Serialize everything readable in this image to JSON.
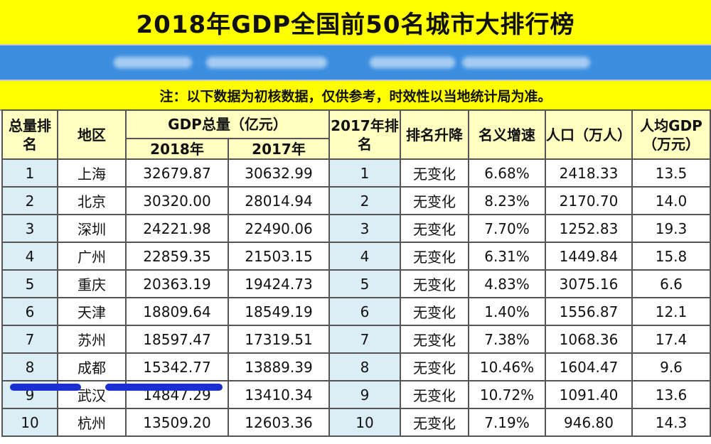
{
  "title": "2018年GDP全国前50名城市大排行榜",
  "note": "注：以下数据为初核数据，仅供参考，时效性以当地统计局为准。",
  "headers": {
    "rank": "总量排名",
    "region": "地区",
    "gdp_total": "GDP总量（亿元）",
    "y2018": "2018年",
    "y2017": "2017年",
    "rank2017": "2017年排名",
    "rank_change": "排名升降",
    "growth": "名义增速",
    "population": "人口（万人）",
    "per_capita": "人均GDP（万元）"
  },
  "rows": [
    {
      "rank": "1",
      "region": "上海",
      "gdp2018": "32679.87",
      "gdp2017": "30632.99",
      "rank2017": "1",
      "change": "无变化",
      "growth": "6.68%",
      "population": "2418.33",
      "per_capita": "13.5"
    },
    {
      "rank": "2",
      "region": "北京",
      "gdp2018": "30320.00",
      "gdp2017": "28014.94",
      "rank2017": "2",
      "change": "无变化",
      "growth": "8.23%",
      "population": "2170.70",
      "per_capita": "14.0"
    },
    {
      "rank": "3",
      "region": "深圳",
      "gdp2018": "24221.98",
      "gdp2017": "22490.06",
      "rank2017": "3",
      "change": "无变化",
      "growth": "7.70%",
      "population": "1252.83",
      "per_capita": "19.3"
    },
    {
      "rank": "4",
      "region": "广州",
      "gdp2018": "22859.35",
      "gdp2017": "21503.15",
      "rank2017": "4",
      "change": "无变化",
      "growth": "6.31%",
      "population": "1449.84",
      "per_capita": "15.8"
    },
    {
      "rank": "5",
      "region": "重庆",
      "gdp2018": "20363.19",
      "gdp2017": "19424.73",
      "rank2017": "5",
      "change": "无变化",
      "growth": "4.83%",
      "population": "3075.16",
      "per_capita": "6.6"
    },
    {
      "rank": "6",
      "region": "天津",
      "gdp2018": "18809.64",
      "gdp2017": "18549.19",
      "rank2017": "6",
      "change": "无变化",
      "growth": "1.40%",
      "population": "1556.87",
      "per_capita": "12.1"
    },
    {
      "rank": "7",
      "region": "苏州",
      "gdp2018": "18597.47",
      "gdp2017": "17319.51",
      "rank2017": "7",
      "change": "无变化",
      "growth": "7.38%",
      "population": "1068.36",
      "per_capita": "17.4"
    },
    {
      "rank": "8",
      "region": "成都",
      "gdp2018": "15342.77",
      "gdp2017": "13889.39",
      "rank2017": "8",
      "change": "无变化",
      "growth": "10.46%",
      "population": "1604.47",
      "per_capita": "9.6"
    },
    {
      "rank": "9",
      "region": "武汉",
      "gdp2018": "14847.29",
      "gdp2017": "13410.34",
      "rank2017": "9",
      "change": "无变化",
      "growth": "10.72%",
      "population": "1091.40",
      "per_capita": "13.6"
    },
    {
      "rank": "10",
      "region": "杭州",
      "gdp2018": "13509.20",
      "gdp2017": "12603.36",
      "rank2017": "10",
      "change": "无变化",
      "growth": "7.19%",
      "population": "946.80",
      "per_capita": "14.3"
    }
  ]
}
